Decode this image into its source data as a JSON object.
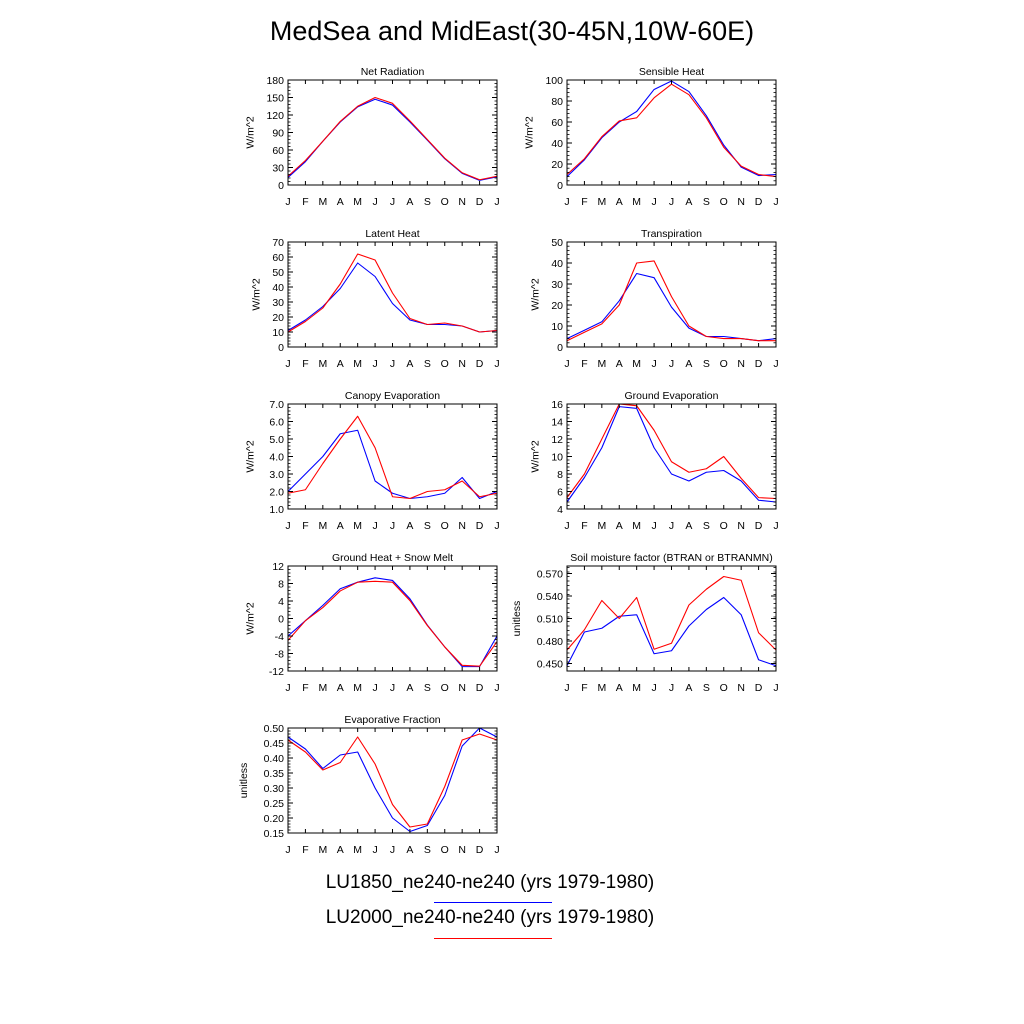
{
  "figure_title": "MedSea and MidEast(30-45N,10W-60E)",
  "month_labels": [
    "J",
    "F",
    "M",
    "A",
    "M",
    "J",
    "J",
    "A",
    "S",
    "O",
    "N",
    "D",
    "J"
  ],
  "legend": [
    {
      "label": "LU1850_ne240-ne240 (yrs 1979-1980)",
      "color": "#0000ff"
    },
    {
      "label": "LU2000_ne240-ne240 (yrs 1979-1980)",
      "color": "#ff0000"
    }
  ],
  "chart_data": [
    {
      "type": "line",
      "title": "Net Radiation",
      "ylabel": "W/m^2",
      "ylim": [
        0,
        180
      ],
      "yticks": [
        0,
        30,
        60,
        90,
        120,
        150,
        180
      ],
      "ytick_labels": [
        "0",
        "30",
        "60",
        "90",
        "120",
        "150",
        "180"
      ],
      "series": [
        {
          "name": "LU1850_ne240-ne240 (yrs 1979-1980)",
          "color": "#0000ff",
          "values": [
            13,
            40,
            75,
            108,
            134,
            147,
            137,
            108,
            77,
            45,
            20,
            8,
            14
          ]
        },
        {
          "name": "LU2000_ne240-ne240 (yrs 1979-1980)",
          "color": "#ff0000",
          "values": [
            15,
            42,
            75,
            109,
            135,
            150,
            140,
            110,
            78,
            46,
            21,
            9,
            15
          ]
        }
      ]
    },
    {
      "type": "line",
      "title": "Sensible Heat",
      "ylabel": "W/m^2",
      "ylim": [
        0,
        100
      ],
      "yticks": [
        0,
        20,
        40,
        60,
        80,
        100
      ],
      "ytick_labels": [
        "0",
        "20",
        "40",
        "60",
        "80",
        "100"
      ],
      "series": [
        {
          "name": "LU1850_ne240-ne240 (yrs 1979-1980)",
          "color": "#0000ff",
          "values": [
            8,
            24,
            45,
            60,
            70,
            91,
            99,
            89,
            66,
            38,
            17,
            9,
            10
          ]
        },
        {
          "name": "LU2000_ne240-ne240 (yrs 1979-1980)",
          "color": "#ff0000",
          "values": [
            10,
            25,
            46,
            61,
            64,
            83,
            96,
            86,
            64,
            36,
            18,
            10,
            8
          ]
        }
      ]
    },
    {
      "type": "line",
      "title": "Latent Heat",
      "ylabel": "W/m^2",
      "ylim": [
        0,
        70
      ],
      "yticks": [
        0,
        10,
        20,
        30,
        40,
        50,
        60,
        70
      ],
      "ytick_labels": [
        "0",
        "10",
        "20",
        "30",
        "40",
        "50",
        "60",
        "70"
      ],
      "series": [
        {
          "name": "LU1850_ne240-ne240 (yrs 1979-1980)",
          "color": "#0000ff",
          "values": [
            11,
            18,
            27,
            39,
            56,
            47,
            29,
            18,
            15,
            15,
            14,
            10,
            11
          ]
        },
        {
          "name": "LU2000_ne240-ne240 (yrs 1979-1980)",
          "color": "#ff0000",
          "values": [
            10,
            17,
            26,
            42,
            62,
            58,
            36,
            19,
            15,
            16,
            14,
            10,
            11
          ]
        }
      ]
    },
    {
      "type": "line",
      "title": "Transpiration",
      "ylabel": "W/m^2",
      "ylim": [
        0,
        50
      ],
      "yticks": [
        0,
        10,
        20,
        30,
        40,
        50
      ],
      "ytick_labels": [
        "0",
        "10",
        "20",
        "30",
        "40",
        "50"
      ],
      "series": [
        {
          "name": "LU1850_ne240-ne240 (yrs 1979-1980)",
          "color": "#0000ff",
          "values": [
            4,
            8,
            12,
            22,
            35,
            33,
            19,
            9,
            5,
            5,
            4,
            3,
            4
          ]
        },
        {
          "name": "LU2000_ne240-ne240 (yrs 1979-1980)",
          "color": "#ff0000",
          "values": [
            3,
            7,
            11,
            20,
            40,
            41,
            24,
            10,
            5,
            4,
            4,
            3,
            3
          ]
        }
      ]
    },
    {
      "type": "line",
      "title": "Canopy Evaporation",
      "ylabel": "W/m^2",
      "ylim": [
        1.0,
        7.0
      ],
      "yticks": [
        1,
        2,
        3,
        4,
        5,
        6,
        7
      ],
      "ytick_labels": [
        "1.0",
        "2.0",
        "3.0",
        "4.0",
        "5.0",
        "6.0",
        "7.0"
      ],
      "series": [
        {
          "name": "LU1850_ne240-ne240 (yrs 1979-1980)",
          "color": "#0000ff",
          "values": [
            2.0,
            3.0,
            4.0,
            5.3,
            5.5,
            2.6,
            1.9,
            1.6,
            1.7,
            1.9,
            2.8,
            1.6,
            2.0
          ]
        },
        {
          "name": "LU2000_ne240-ne240 (yrs 1979-1980)",
          "color": "#ff0000",
          "values": [
            1.9,
            2.1,
            3.6,
            5.0,
            6.3,
            4.5,
            1.7,
            1.6,
            2.0,
            2.1,
            2.6,
            1.7,
            1.9
          ]
        }
      ]
    },
    {
      "type": "line",
      "title": "Ground Evaporation",
      "ylabel": "W/m^2",
      "ylim": [
        4,
        16
      ],
      "yticks": [
        4,
        6,
        8,
        10,
        12,
        14,
        16
      ],
      "ytick_labels": [
        "4",
        "6",
        "8",
        "10",
        "12",
        "14",
        "16"
      ],
      "series": [
        {
          "name": "LU1850_ne240-ne240 (yrs 1979-1980)",
          "color": "#0000ff",
          "values": [
            4.8,
            7.6,
            11.0,
            15.7,
            15.5,
            11.0,
            8.0,
            7.2,
            8.2,
            8.4,
            7.2,
            5.0,
            4.8
          ]
        },
        {
          "name": "LU2000_ne240-ne240 (yrs 1979-1980)",
          "color": "#ff0000",
          "values": [
            5.3,
            8.0,
            12.0,
            16.0,
            15.8,
            13.0,
            9.4,
            8.2,
            8.6,
            10.0,
            7.5,
            5.3,
            5.2
          ]
        }
      ]
    },
    {
      "type": "line",
      "title": "Ground Heat + Snow Melt",
      "ylabel": "W/m^2",
      "ylim": [
        -12,
        12
      ],
      "yticks": [
        -12,
        -8,
        -4,
        0,
        4,
        8,
        12
      ],
      "ytick_labels": [
        "-12",
        "-8",
        "-4",
        "0",
        "4",
        "8",
        "12"
      ],
      "series": [
        {
          "name": "LU1850_ne240-ne240 (yrs 1979-1980)",
          "color": "#0000ff",
          "values": [
            -4,
            -0.5,
            3,
            6.8,
            8.3,
            9.3,
            8.7,
            4.5,
            -1.5,
            -6.5,
            -11,
            -11,
            -4
          ]
        },
        {
          "name": "LU2000_ne240-ne240 (yrs 1979-1980)",
          "color": "#ff0000",
          "values": [
            -5,
            -0.5,
            2.5,
            6.3,
            8.3,
            8.5,
            8.3,
            4.1,
            -1.6,
            -6.5,
            -10.7,
            -10.9,
            -5.3
          ]
        }
      ]
    },
    {
      "type": "line",
      "title": "Soil moisture factor (BTRAN or BTRANMN)",
      "ylabel": "unitless",
      "ylim": [
        0.44,
        0.58
      ],
      "yticks": [
        0.45,
        0.48,
        0.51,
        0.54,
        0.57
      ],
      "ytick_labels": [
        "0.450",
        "0.480",
        "0.510",
        "0.540",
        "0.570"
      ],
      "series": [
        {
          "name": "LU1850_ne240-ne240 (yrs 1979-1980)",
          "color": "#0000ff",
          "values": [
            0.447,
            0.492,
            0.497,
            0.513,
            0.515,
            0.463,
            0.467,
            0.5,
            0.522,
            0.538,
            0.515,
            0.455,
            0.447
          ]
        },
        {
          "name": "LU2000_ne240-ne240 (yrs 1979-1980)",
          "color": "#ff0000",
          "values": [
            0.468,
            0.495,
            0.534,
            0.51,
            0.538,
            0.469,
            0.477,
            0.528,
            0.549,
            0.566,
            0.561,
            0.491,
            0.468
          ]
        }
      ]
    },
    {
      "type": "line",
      "title": "Evaporative Fraction",
      "ylabel": "unitless",
      "ylim": [
        0.15,
        0.5
      ],
      "yticks": [
        0.15,
        0.2,
        0.25,
        0.3,
        0.35,
        0.4,
        0.45,
        0.5
      ],
      "ytick_labels": [
        "0.15",
        "0.20",
        "0.25",
        "0.30",
        "0.35",
        "0.40",
        "0.45",
        "0.50"
      ],
      "series": [
        {
          "name": "LU1850_ne240-ne240 (yrs 1979-1980)",
          "color": "#0000ff",
          "values": [
            0.47,
            0.43,
            0.365,
            0.41,
            0.42,
            0.3,
            0.2,
            0.155,
            0.175,
            0.275,
            0.44,
            0.5,
            0.47
          ]
        },
        {
          "name": "LU2000_ne240-ne240 (yrs 1979-1980)",
          "color": "#ff0000",
          "values": [
            0.46,
            0.42,
            0.36,
            0.385,
            0.47,
            0.38,
            0.245,
            0.17,
            0.18,
            0.305,
            0.46,
            0.48,
            0.46
          ]
        }
      ]
    }
  ]
}
